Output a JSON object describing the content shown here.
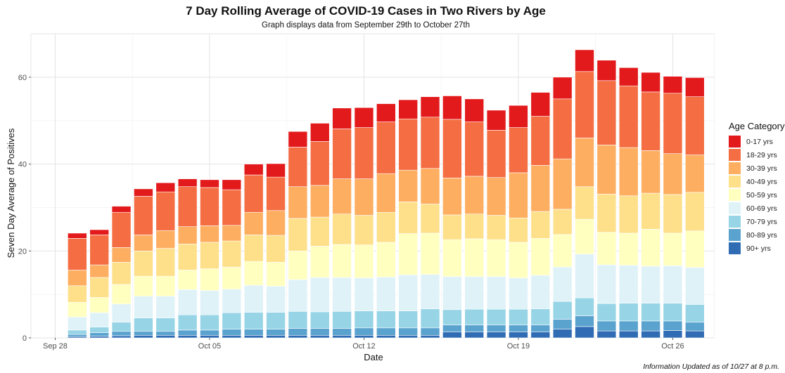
{
  "chart_data": {
    "type": "bar",
    "stacked": true,
    "title": "7 Day Rolling Average of COVID-19 Cases in Two Rivers by Age",
    "subtitle": "Graph displays data from September 29th to October 27th",
    "xlabel": "Date",
    "ylabel": "Seven Day Average of Positives",
    "ylim": [
      0,
      70
    ],
    "yticks": [
      0,
      20,
      40,
      60
    ],
    "xticks": [
      {
        "label": "Sep 28",
        "date": "2020-09-28"
      },
      {
        "label": "Oct 05",
        "date": "2020-10-05"
      },
      {
        "label": "Oct 12",
        "date": "2020-10-12"
      },
      {
        "label": "Oct 19",
        "date": "2020-10-19"
      },
      {
        "label": "Oct 26",
        "date": "2020-10-26"
      }
    ],
    "x": [
      "2020-09-29",
      "2020-09-30",
      "2020-10-01",
      "2020-10-02",
      "2020-10-03",
      "2020-10-04",
      "2020-10-05",
      "2020-10-06",
      "2020-10-07",
      "2020-10-08",
      "2020-10-09",
      "2020-10-10",
      "2020-10-11",
      "2020-10-12",
      "2020-10-13",
      "2020-10-14",
      "2020-10-15",
      "2020-10-16",
      "2020-10-17",
      "2020-10-18",
      "2020-10-19",
      "2020-10-20",
      "2020-10-21",
      "2020-10-22",
      "2020-10-23",
      "2020-10-24",
      "2020-10-25",
      "2020-10-26",
      "2020-10-27"
    ],
    "grid": true,
    "legend_title": "Age Category",
    "legend_position": "right",
    "series": [
      {
        "name": "90+ yrs",
        "color": "#2f6cb3",
        "values": [
          0.3,
          0.4,
          0.5,
          0.6,
          0.6,
          0.6,
          0.6,
          0.6,
          0.6,
          0.6,
          0.6,
          0.6,
          0.6,
          0.6,
          0.6,
          0.6,
          0.6,
          1.4,
          1.4,
          1.4,
          1.4,
          1.4,
          2.0,
          2.6,
          1.6,
          1.6,
          1.6,
          1.7,
          1.6
        ]
      },
      {
        "name": "80-89 yrs",
        "color": "#5ba3cf",
        "values": [
          0.5,
          0.8,
          1.0,
          0.9,
          0.9,
          1.2,
          1.2,
          1.4,
          1.4,
          1.4,
          1.6,
          1.6,
          1.6,
          1.7,
          1.7,
          1.7,
          1.7,
          1.6,
          1.6,
          1.6,
          1.6,
          1.6,
          2.3,
          2.5,
          2.3,
          2.3,
          2.3,
          2.2,
          2.0
        ]
      },
      {
        "name": "70-79 yrs",
        "color": "#96d4e6",
        "values": [
          1.0,
          1.3,
          2.1,
          3.1,
          3.1,
          3.5,
          3.5,
          3.8,
          3.9,
          3.9,
          3.9,
          3.8,
          3.9,
          3.9,
          3.9,
          3.9,
          4.4,
          3.5,
          3.6,
          3.6,
          3.6,
          3.7,
          4.1,
          4.1,
          4.0,
          4.1,
          4.1,
          4.1,
          4.1
        ]
      },
      {
        "name": "60-69 yrs",
        "color": "#dff2f8",
        "values": [
          3.0,
          3.3,
          4.2,
          5.0,
          5.0,
          5.8,
          5.6,
          5.4,
          6.2,
          6.0,
          7.3,
          7.9,
          7.8,
          7.6,
          7.8,
          8.3,
          7.9,
          7.6,
          7.5,
          7.5,
          7.2,
          7.7,
          7.9,
          10.1,
          8.9,
          8.7,
          8.5,
          8.6,
          8.5
        ]
      },
      {
        "name": "50-59 yrs",
        "color": "#ffffc0",
        "values": [
          3.4,
          3.5,
          4.5,
          4.6,
          4.6,
          4.5,
          5.0,
          5.1,
          5.5,
          5.5,
          6.6,
          7.2,
          7.6,
          7.6,
          8.0,
          9.5,
          9.5,
          8.5,
          8.7,
          8.5,
          8.2,
          8.5,
          7.5,
          8.0,
          7.5,
          7.4,
          8.5,
          7.5,
          8.4
        ]
      },
      {
        "name": "40-49 yrs",
        "color": "#fee08b",
        "values": [
          3.8,
          4.6,
          5.1,
          5.8,
          6.4,
          6.0,
          6.1,
          6.0,
          6.1,
          6.2,
          7.5,
          6.7,
          7.0,
          6.8,
          6.9,
          7.3,
          6.7,
          5.7,
          5.7,
          5.6,
          5.6,
          6.2,
          5.8,
          7.5,
          8.8,
          8.6,
          8.3,
          8.9,
          8.9
        ]
      },
      {
        "name": "30-39 yrs",
        "color": "#fdae61",
        "values": [
          3.6,
          2.9,
          3.4,
          3.7,
          4.1,
          4.0,
          3.8,
          3.6,
          5.2,
          5.7,
          7.3,
          7.3,
          8.1,
          8.4,
          8.9,
          7.3,
          8.2,
          8.5,
          8.7,
          8.7,
          10.4,
          10.6,
          11.6,
          11.2,
          11.3,
          11.1,
          9.8,
          9.4,
          8.6
        ]
      },
      {
        "name": "18-29 yrs",
        "color": "#f46d43",
        "values": [
          7.3,
          6.9,
          8.1,
          8.9,
          8.9,
          9.2,
          8.8,
          8.2,
          8.6,
          7.7,
          9.1,
          10.1,
          11.5,
          11.8,
          11.9,
          11.8,
          11.8,
          13.5,
          12.5,
          10.9,
          10.4,
          11.3,
          13.8,
          15.3,
          14.8,
          14.2,
          13.5,
          13.9,
          13.4
        ]
      },
      {
        "name": "0-17 yrs",
        "color": "#e31a1c",
        "values": [
          1.2,
          1.2,
          1.4,
          1.7,
          2.1,
          1.8,
          1.8,
          2.3,
          2.5,
          3.1,
          3.6,
          4.2,
          4.8,
          4.6,
          4.2,
          4.4,
          4.7,
          5.4,
          5.3,
          4.6,
          5.1,
          5.5,
          5.0,
          5.0,
          4.7,
          4.2,
          4.5,
          3.9,
          4.4
        ]
      }
    ]
  },
  "footnote": "Information Updated as of 10/27 at 8 p.m."
}
